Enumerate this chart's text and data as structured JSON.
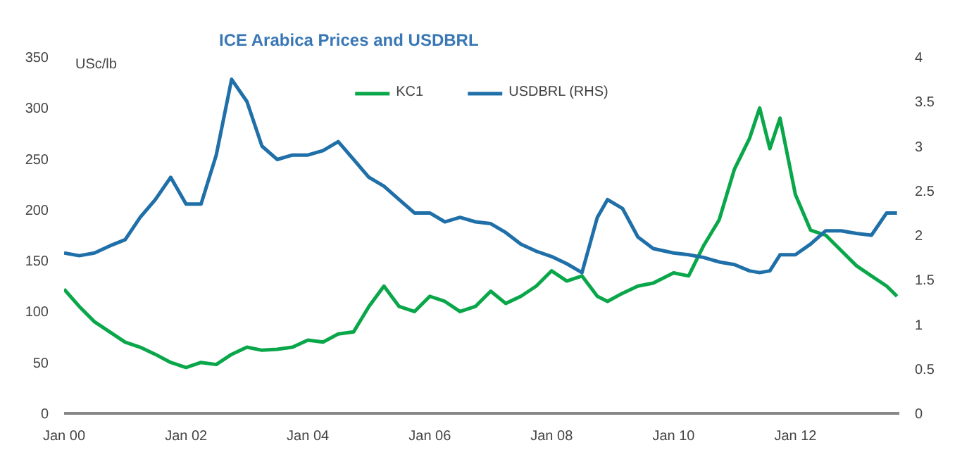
{
  "chart_data": {
    "type": "line",
    "title": "ICE Arabica Prices and USDBRL",
    "ylabel": "USc/lb",
    "x": [
      "2000-01",
      "2000-04",
      "2000-07",
      "2000-10",
      "2001-01",
      "2001-04",
      "2001-07",
      "2001-10",
      "2002-01",
      "2002-04",
      "2002-07",
      "2002-10",
      "2003-01",
      "2003-04",
      "2003-07",
      "2003-10",
      "2004-01",
      "2004-04",
      "2004-07",
      "2004-10",
      "2005-01",
      "2005-04",
      "2005-07",
      "2005-10",
      "2006-01",
      "2006-04",
      "2006-07",
      "2006-10",
      "2007-01",
      "2007-04",
      "2007-07",
      "2007-10",
      "2008-01",
      "2008-04",
      "2008-07",
      "2008-10",
      "2008-12",
      "2009-03",
      "2009-06",
      "2009-09",
      "2010-01",
      "2010-04",
      "2010-07",
      "2010-10",
      "2011-01",
      "2011-04",
      "2011-06",
      "2011-08",
      "2011-10",
      "2012-01",
      "2012-04",
      "2012-07",
      "2012-10",
      "2013-01",
      "2013-04",
      "2013-07",
      "2013-09"
    ],
    "series": [
      {
        "name": "KC1",
        "color": "#0aa74a",
        "values": [
          122,
          105,
          90,
          80,
          70,
          65,
          58,
          50,
          45,
          50,
          48,
          58,
          65,
          62,
          63,
          65,
          72,
          70,
          78,
          80,
          105,
          125,
          105,
          100,
          115,
          110,
          100,
          105,
          120,
          108,
          115,
          125,
          140,
          130,
          135,
          115,
          110,
          118,
          125,
          128,
          138,
          135,
          165,
          190,
          240,
          270,
          300,
          260,
          290,
          215,
          180,
          175,
          160,
          145,
          135,
          125,
          115
        ]
      },
      {
        "name": "USDBRL (RHS)",
        "color": "#1f6fa8",
        "axis": "y2",
        "values": [
          1.8,
          1.77,
          1.8,
          1.88,
          1.95,
          2.2,
          2.4,
          2.65,
          2.35,
          2.35,
          2.9,
          3.75,
          3.5,
          3.0,
          2.85,
          2.9,
          2.9,
          2.95,
          3.05,
          2.85,
          2.65,
          2.55,
          2.4,
          2.25,
          2.25,
          2.15,
          2.2,
          2.15,
          2.13,
          2.03,
          1.9,
          1.82,
          1.76,
          1.68,
          1.58,
          2.2,
          2.4,
          2.3,
          1.98,
          1.85,
          1.8,
          1.78,
          1.75,
          1.7,
          1.67,
          1.6,
          1.58,
          1.6,
          1.78,
          1.78,
          1.9,
          2.05,
          2.05,
          2.02,
          2.0,
          2.25,
          2.25
        ]
      }
    ],
    "xlim": [
      "2000-01-01",
      "2013-09-15"
    ],
    "xticks": [
      {
        "value": "2000-01-01",
        "label": "Jan 00"
      },
      {
        "value": "2002-01-01",
        "label": "Jan 02"
      },
      {
        "value": "2004-01-01",
        "label": "Jan 04"
      },
      {
        "value": "2006-01-01",
        "label": "Jan 06"
      },
      {
        "value": "2008-01-01",
        "label": "Jan 08"
      },
      {
        "value": "2010-01-01",
        "label": "Jan 10"
      },
      {
        "value": "2012-01-01",
        "label": "Jan 12"
      }
    ],
    "ylim": [
      0,
      350
    ],
    "yticks": [
      0,
      50,
      100,
      150,
      200,
      250,
      300,
      350
    ],
    "y2lim": [
      0,
      4
    ],
    "y2ticks": [
      0,
      0.5,
      1,
      1.5,
      2,
      2.5,
      3,
      3.5,
      4
    ],
    "grid": false,
    "legend": "top",
    "marker": "none",
    "line_style": "solid"
  }
}
